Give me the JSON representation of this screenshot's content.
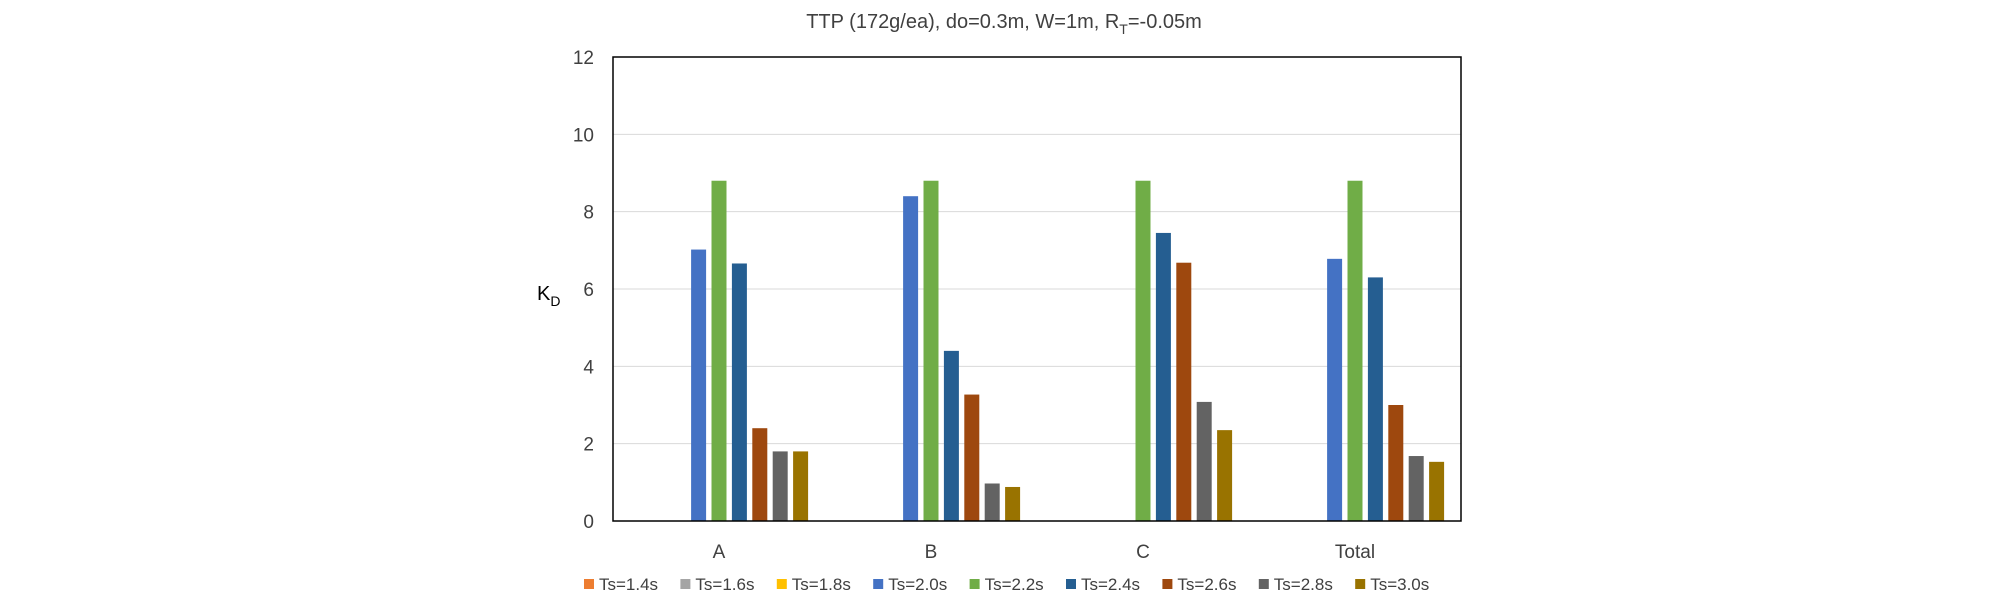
{
  "chart_data": {
    "type": "bar",
    "title_main": "TTP (172g/ea), do=0.3m, W=1m, R",
    "title_sub": "T",
    "title_tail": "=-0.05m",
    "ylabel_main": "K",
    "ylabel_sub": "D",
    "xlabel": "",
    "ylim": [
      0,
      12
    ],
    "yticks": [
      0,
      2,
      4,
      6,
      8,
      10,
      12
    ],
    "grid": true,
    "legend_position": "bottom",
    "categories": [
      "A",
      "B",
      "C",
      "Total"
    ],
    "series": [
      {
        "name": "Ts=1.4s",
        "color": "#ED7D31",
        "values": [
          null,
          null,
          null,
          null
        ]
      },
      {
        "name": "Ts=1.6s",
        "color": "#A5A5A5",
        "values": [
          null,
          null,
          null,
          null
        ]
      },
      {
        "name": "Ts=1.8s",
        "color": "#FFC000",
        "values": [
          null,
          null,
          null,
          null
        ]
      },
      {
        "name": "Ts=2.0s",
        "color": "#4472C4",
        "values": [
          7.02,
          8.4,
          null,
          6.78
        ]
      },
      {
        "name": "Ts=2.2s",
        "color": "#70AD47",
        "values": [
          8.8,
          8.8,
          8.8,
          8.8
        ]
      },
      {
        "name": "Ts=2.4s",
        "color": "#255E91",
        "values": [
          6.66,
          4.4,
          7.45,
          6.3
        ]
      },
      {
        "name": "Ts=2.6s",
        "color": "#9E480E",
        "values": [
          2.4,
          3.27,
          6.68,
          3.0
        ]
      },
      {
        "name": "Ts=2.8s",
        "color": "#636363",
        "values": [
          1.8,
          0.97,
          3.08,
          1.68
        ]
      },
      {
        "name": "Ts=3.0s",
        "color": "#997300",
        "values": [
          1.8,
          0.88,
          2.35,
          1.53
        ]
      }
    ]
  }
}
